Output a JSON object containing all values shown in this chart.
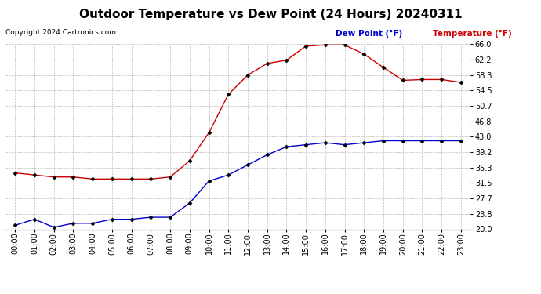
{
  "title": "Outdoor Temperature vs Dew Point (24 Hours) 20240311",
  "copyright": "Copyright 2024 Cartronics.com",
  "legend_dew": "Dew Point (°F)",
  "legend_temp": "Temperature (°F)",
  "hours": [
    "00:00",
    "01:00",
    "02:00",
    "03:00",
    "04:00",
    "05:00",
    "06:00",
    "07:00",
    "08:00",
    "09:00",
    "10:00",
    "11:00",
    "12:00",
    "13:00",
    "14:00",
    "15:00",
    "16:00",
    "17:00",
    "18:00",
    "19:00",
    "20:00",
    "21:00",
    "22:00",
    "23:00"
  ],
  "temperature": [
    34.0,
    33.5,
    33.0,
    33.0,
    32.5,
    32.5,
    32.5,
    32.5,
    33.0,
    37.0,
    44.0,
    53.5,
    58.3,
    61.2,
    62.0,
    65.5,
    65.8,
    65.8,
    63.5,
    60.2,
    57.0,
    57.2,
    57.2,
    56.5
  ],
  "dew_point": [
    21.0,
    22.5,
    20.5,
    21.5,
    21.5,
    22.5,
    22.5,
    23.0,
    23.0,
    26.5,
    32.0,
    33.5,
    36.0,
    38.5,
    40.5,
    41.0,
    41.5,
    41.0,
    41.5,
    42.0,
    42.0,
    42.0,
    42.0,
    42.0
  ],
  "temp_color": "#cc0000",
  "dew_color": "#0000cc",
  "ylim_min": 20.0,
  "ylim_max": 66.0,
  "yticks": [
    20.0,
    23.8,
    27.7,
    31.5,
    35.3,
    39.2,
    43.0,
    46.8,
    50.7,
    54.5,
    58.3,
    62.2,
    66.0
  ],
  "bg_color": "#ffffff",
  "grid_color": "#bbbbbb",
  "title_fontsize": 11,
  "label_fontsize": 7,
  "copyright_fontsize": 6.5,
  "legend_fontsize": 7.5
}
